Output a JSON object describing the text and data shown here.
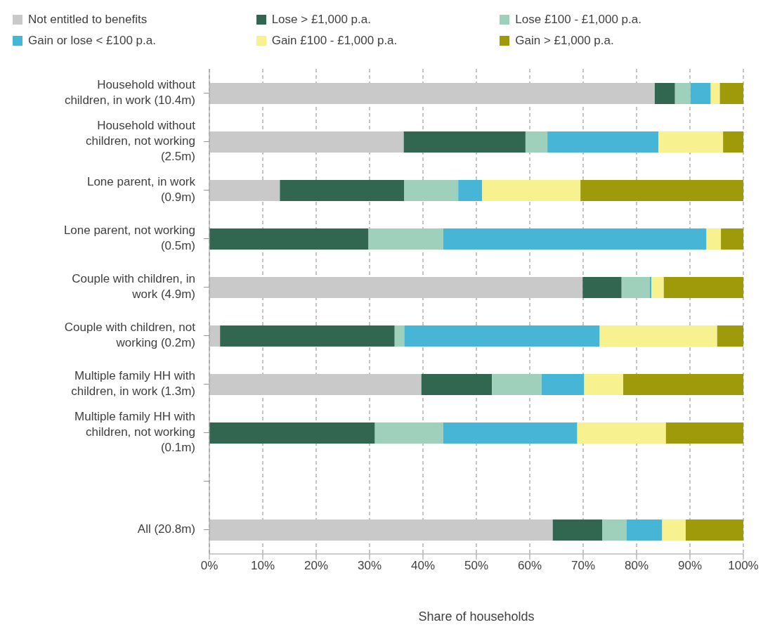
{
  "chart_data": {
    "type": "bar",
    "orientation": "horizontal",
    "stacked": true,
    "xlabel": "Share of households",
    "categories": [
      "Household without children, in work (10.4m)",
      "Household without children, not working (2.5m)",
      "Lone parent, in work (0.9m)",
      "Lone parent, not working (0.5m)",
      "Couple with children, in work (4.9m)",
      "Couple with children, not working (0.2m)",
      "Multiple family HH with children, in work (1.3m)",
      "Multiple family HH with children, not working (0.1m)",
      null,
      "All (20.8m)"
    ],
    "series": [
      {
        "name": "Not entitled to benefits",
        "color": "#c9c9c9",
        "values": [
          83.4,
          36.4,
          13.2,
          0,
          69.9,
          2.0,
          39.7,
          0,
          null,
          64.3
        ]
      },
      {
        "name": "Lose > £1,000 p.a.",
        "color": "#316651",
        "values": [
          3.8,
          22.8,
          23.3,
          29.8,
          7.3,
          32.7,
          13.2,
          31.0,
          null,
          9.3
        ]
      },
      {
        "name": "Lose £100 - £1,000 p.a.",
        "color": "#9fd0bb",
        "values": [
          2.9,
          4.1,
          10.1,
          14.0,
          5.3,
          1.8,
          9.3,
          12.8,
          null,
          4.5
        ]
      },
      {
        "name": "Gain or lose < £100 p.a.",
        "color": "#47b6d6",
        "values": [
          3.8,
          20.8,
          4.5,
          49.3,
          0.3,
          36.6,
          8.0,
          25.1,
          null,
          6.7
        ]
      },
      {
        "name": "Gain £100 - £1,000 p.a.",
        "color": "#f7f28f",
        "values": [
          1.7,
          12.1,
          18.4,
          2.7,
          2.3,
          22.0,
          7.3,
          16.6,
          null,
          4.4
        ]
      },
      {
        "name": "Gain > £1,000 p.a.",
        "color": "#9e9a0a",
        "values": [
          4.4,
          3.8,
          30.5,
          4.2,
          14.9,
          4.9,
          22.5,
          14.5,
          null,
          10.8
        ]
      }
    ],
    "xlim": [
      0,
      100
    ],
    "xticks": [
      {
        "value": 0,
        "label": "0%"
      },
      {
        "value": 10,
        "label": "10%"
      },
      {
        "value": 20,
        "label": "20%"
      },
      {
        "value": 30,
        "label": "30%"
      },
      {
        "value": 40,
        "label": "40%"
      },
      {
        "value": 50,
        "label": "50%"
      },
      {
        "value": 60,
        "label": "60%"
      },
      {
        "value": 70,
        "label": "70%"
      },
      {
        "value": 80,
        "label": "80%"
      },
      {
        "value": 90,
        "label": "90%"
      },
      {
        "value": 100,
        "label": "100%"
      }
    ],
    "grid": "x",
    "legend": "top"
  }
}
